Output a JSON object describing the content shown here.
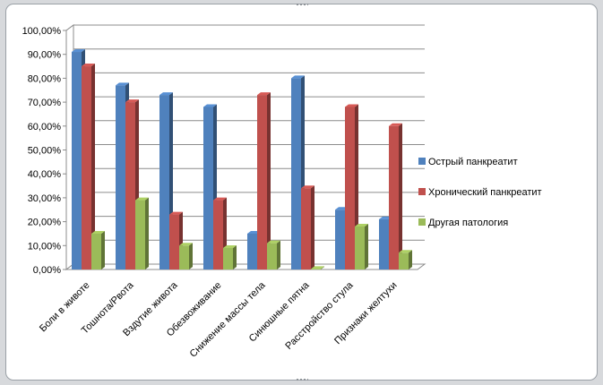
{
  "chart_data": {
    "type": "bar",
    "variant": "3d-clustered-column",
    "title": "",
    "xlabel": "",
    "ylabel": "",
    "ylim": [
      0,
      100
    ],
    "y_ticks": [
      0,
      10,
      20,
      30,
      40,
      50,
      60,
      70,
      80,
      90,
      100
    ],
    "y_tick_labels": [
      "0,00%",
      "10,00%",
      "20,00%",
      "30,00%",
      "40,00%",
      "50,00%",
      "60,00%",
      "70,00%",
      "80,00%",
      "90,00%",
      "100,00%"
    ],
    "grid": true,
    "legend_position": "right",
    "categories": [
      "Боли в животе",
      "Тошнота/Рвота",
      "Вздутие живота",
      "Обезвоживание",
      "Снижение массы тела",
      "Синюшные пятна",
      "Расстройство стула",
      "Признаки желтухи"
    ],
    "series": [
      {
        "name": "Острый панкреатит",
        "color": "#4f81bd",
        "values": [
          91,
          77,
          73,
          68,
          15,
          80,
          25,
          21
        ]
      },
      {
        "name": "Хронический панкреатит",
        "color": "#c0504d",
        "values": [
          85,
          70,
          23,
          29,
          73,
          34,
          68,
          60
        ]
      },
      {
        "name": "Другая патология",
        "color": "#9bbb59",
        "values": [
          15,
          29,
          10,
          9,
          11,
          0,
          18,
          7
        ]
      }
    ]
  }
}
